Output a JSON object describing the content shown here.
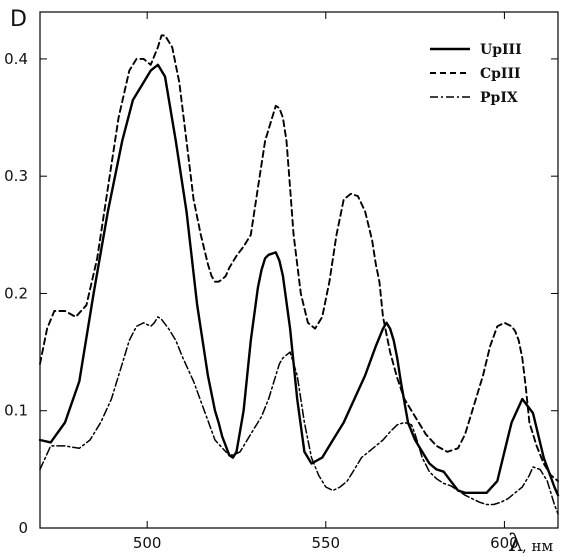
{
  "chart_data": {
    "type": "line",
    "title": "",
    "xlabel": "λ",
    "xlabel_unit": ", нм",
    "ylabel": "D",
    "xlim": [
      470,
      615
    ],
    "ylim": [
      0,
      0.44
    ],
    "xticks": [
      500,
      550,
      600
    ],
    "yticks": [
      0,
      0.1,
      0.2,
      0.3,
      0.4
    ],
    "grid": false,
    "legend_position": "top-right",
    "series": [
      {
        "name": "UpIII",
        "style": "solid",
        "color": "#000000",
        "x": [
          470,
          473,
          477,
          481,
          485,
          489,
          493,
          496,
          499,
          501,
          503,
          505,
          508,
          511,
          514,
          517,
          519,
          520,
          521,
          522,
          523,
          524,
          525,
          527,
          529,
          531,
          532,
          533,
          534,
          536,
          537,
          538,
          540,
          542,
          544,
          546,
          549,
          552,
          555,
          558,
          561,
          564,
          566,
          567,
          568,
          569,
          570,
          571,
          573,
          575,
          577,
          579,
          581,
          583,
          585,
          587,
          589,
          592,
          595,
          598,
          600,
          602,
          605,
          608,
          611,
          614,
          615
        ],
        "y": [
          0.075,
          0.073,
          0.09,
          0.125,
          0.2,
          0.27,
          0.33,
          0.365,
          0.38,
          0.39,
          0.395,
          0.385,
          0.33,
          0.27,
          0.19,
          0.13,
          0.1,
          0.09,
          0.078,
          0.07,
          0.062,
          0.06,
          0.065,
          0.1,
          0.16,
          0.205,
          0.22,
          0.23,
          0.233,
          0.235,
          0.228,
          0.215,
          0.17,
          0.11,
          0.065,
          0.055,
          0.06,
          0.075,
          0.09,
          0.11,
          0.13,
          0.155,
          0.17,
          0.175,
          0.17,
          0.16,
          0.145,
          0.125,
          0.09,
          0.075,
          0.065,
          0.055,
          0.05,
          0.048,
          0.04,
          0.032,
          0.03,
          0.03,
          0.03,
          0.04,
          0.065,
          0.09,
          0.11,
          0.098,
          0.06,
          0.035,
          0.028
        ]
      },
      {
        "name": "CpIII",
        "style": "dashed",
        "color": "#000000",
        "x": [
          470,
          472,
          474,
          477,
          480,
          483,
          486,
          489,
          492,
          495,
          497,
          499,
          501,
          503,
          504,
          505,
          507,
          509,
          511,
          513,
          515,
          517,
          518,
          519,
          520,
          521,
          522,
          523,
          525,
          527,
          529,
          531,
          533,
          535,
          536,
          537,
          538,
          539,
          540,
          541,
          543,
          545,
          547,
          549,
          551,
          553,
          555,
          557,
          559,
          561,
          563,
          564,
          565,
          566,
          568,
          570,
          572,
          574,
          576,
          578,
          581,
          584,
          587,
          589,
          591,
          594,
          596,
          598,
          600,
          602,
          603,
          604,
          605,
          606,
          607,
          609,
          611,
          613,
          615
        ],
        "y": [
          0.14,
          0.17,
          0.185,
          0.185,
          0.18,
          0.19,
          0.23,
          0.29,
          0.35,
          0.39,
          0.4,
          0.4,
          0.395,
          0.41,
          0.42,
          0.42,
          0.41,
          0.38,
          0.33,
          0.28,
          0.25,
          0.225,
          0.215,
          0.21,
          0.21,
          0.212,
          0.215,
          0.222,
          0.232,
          0.24,
          0.25,
          0.29,
          0.33,
          0.35,
          0.36,
          0.358,
          0.35,
          0.33,
          0.29,
          0.25,
          0.2,
          0.175,
          0.17,
          0.18,
          0.21,
          0.25,
          0.28,
          0.285,
          0.283,
          0.27,
          0.245,
          0.225,
          0.21,
          0.18,
          0.15,
          0.128,
          0.11,
          0.1,
          0.09,
          0.08,
          0.07,
          0.065,
          0.068,
          0.08,
          0.1,
          0.13,
          0.155,
          0.172,
          0.175,
          0.172,
          0.168,
          0.16,
          0.145,
          0.12,
          0.09,
          0.07,
          0.055,
          0.045,
          0.04
        ]
      },
      {
        "name": "PpIX",
        "style": "dashdot",
        "color": "#000000",
        "x": [
          470,
          473,
          477,
          481,
          484,
          487,
          490,
          493,
          495,
          497,
          499,
          501,
          502,
          503,
          504,
          506,
          508,
          510,
          513,
          516,
          519,
          522,
          524,
          526,
          528,
          530,
          532,
          534,
          536,
          537,
          538,
          540,
          542,
          544,
          546,
          548,
          550,
          552,
          554,
          556,
          558,
          560,
          562,
          564,
          566,
          568,
          570,
          572,
          574,
          575,
          576,
          577,
          579,
          581,
          583,
          585,
          587,
          589,
          591,
          593,
          595,
          597,
          599,
          601,
          603,
          605,
          607,
          608,
          610,
          612,
          614,
          615
        ],
        "y": [
          0.05,
          0.07,
          0.07,
          0.068,
          0.075,
          0.09,
          0.11,
          0.14,
          0.16,
          0.172,
          0.175,
          0.172,
          0.175,
          0.18,
          0.178,
          0.17,
          0.16,
          0.145,
          0.125,
          0.1,
          0.075,
          0.065,
          0.062,
          0.065,
          0.075,
          0.085,
          0.095,
          0.11,
          0.13,
          0.14,
          0.145,
          0.15,
          0.13,
          0.09,
          0.06,
          0.045,
          0.035,
          0.032,
          0.035,
          0.04,
          0.05,
          0.06,
          0.065,
          0.07,
          0.075,
          0.082,
          0.088,
          0.09,
          0.088,
          0.08,
          0.07,
          0.06,
          0.048,
          0.042,
          0.038,
          0.036,
          0.032,
          0.028,
          0.025,
          0.022,
          0.02,
          0.02,
          0.022,
          0.025,
          0.03,
          0.035,
          0.045,
          0.052,
          0.05,
          0.04,
          0.02,
          0.012
        ]
      }
    ]
  }
}
